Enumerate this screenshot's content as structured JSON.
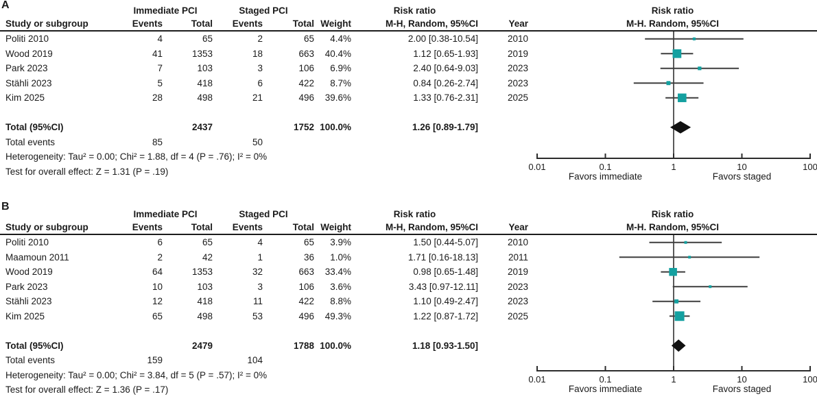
{
  "headers": {
    "study": "Study or subgroup",
    "immediate_group": "Immediate PCI",
    "staged_group": "Staged PCI",
    "events": "Events",
    "total": "Total",
    "weight": "Weight",
    "mh_column": "M-H, Random, 95%CI",
    "year": "Year",
    "risk_ratio": "Risk ratio",
    "mh_plot": "M-H. Random, 95%CI"
  },
  "axis": {
    "tick_labels": [
      "0.01",
      "0.1",
      "1",
      "10",
      "100"
    ],
    "tick_values": [
      0.01,
      0.1,
      1,
      10,
      100
    ],
    "favors_left": "Favors immediate",
    "favors_right": "Favors staged"
  },
  "colors": {
    "marker": "#14a0a0",
    "diamond": "#111111",
    "ci_line": "#3d3d3d",
    "axis": "#2b2b2b",
    "no_effect_line": "#595959"
  },
  "chart_data": [
    {
      "type": "forest",
      "panel": "A",
      "title": "Risk ratio",
      "subtitle": "M-H. Random, 95%CI",
      "x_scale": "log",
      "x_range": [
        0.01,
        100
      ],
      "studies": [
        {
          "study": "Politi 2010",
          "events_immediate": "4",
          "total_immediate": "65",
          "events_staged": "2",
          "total_staged": "65",
          "weight": "4.4%",
          "weight_pct": 4.4,
          "rr_text": "2.00 [0.38-10.54]",
          "year": "2010",
          "rr": 2.0,
          "ci_low": 0.38,
          "ci_high": 10.54
        },
        {
          "study": "Wood 2019",
          "events_immediate": "41",
          "total_immediate": "1353",
          "events_staged": "18",
          "total_staged": "663",
          "weight": "40.4%",
          "weight_pct": 40.4,
          "rr_text": "1.12 [0.65-1.93]",
          "year": "2019",
          "rr": 1.12,
          "ci_low": 0.65,
          "ci_high": 1.93
        },
        {
          "study": "Park 2023",
          "events_immediate": "7",
          "total_immediate": "103",
          "events_staged": "3",
          "total_staged": "106",
          "weight": "6.9%",
          "weight_pct": 6.9,
          "rr_text": "2.40 [0.64-9.03]",
          "year": "2023",
          "rr": 2.4,
          "ci_low": 0.64,
          "ci_high": 9.03
        },
        {
          "study": "Stähli 2023",
          "events_immediate": "5",
          "total_immediate": "418",
          "events_staged": "6",
          "total_staged": "422",
          "weight": "8.7%",
          "weight_pct": 8.7,
          "rr_text": "0.84 [0.26-2.74]",
          "year": "2023",
          "rr": 0.84,
          "ci_low": 0.26,
          "ci_high": 2.74
        },
        {
          "study": "Kim 2025",
          "events_immediate": "28",
          "total_immediate": "498",
          "events_staged": "21",
          "total_staged": "496",
          "weight": "39.6%",
          "weight_pct": 39.6,
          "rr_text": "1.33 [0.76-2.31]",
          "year": "2025",
          "rr": 1.33,
          "ci_low": 0.76,
          "ci_high": 2.31
        }
      ],
      "total": {
        "label": "Total (95%CI)",
        "total_immediate": "2437",
        "total_staged": "1752",
        "weight": "100.0%",
        "rr_text": "1.26 [0.89-1.79]",
        "rr": 1.26,
        "ci_low": 0.89,
        "ci_high": 1.79
      },
      "total_events": {
        "label": "Total events",
        "events_immediate": "85",
        "events_staged": "50"
      },
      "heterogeneity": "Heterogeneity: Tau² = 0.00; Chi² = 1.88, df = 4 (P = .76); I² = 0%",
      "overall_effect": "Test for overall effect: Z = 1.31 (P = .19)"
    },
    {
      "type": "forest",
      "panel": "B",
      "title": "Risk ratio",
      "subtitle": "M-H. Random, 95%CI",
      "x_scale": "log",
      "x_range": [
        0.01,
        100
      ],
      "studies": [
        {
          "study": "Politi 2010",
          "events_immediate": "6",
          "total_immediate": "65",
          "events_staged": "4",
          "total_staged": "65",
          "weight": "3.9%",
          "weight_pct": 3.9,
          "rr_text": "1.50 [0.44-5.07]",
          "year": "2010",
          "rr": 1.5,
          "ci_low": 0.44,
          "ci_high": 5.07
        },
        {
          "study": "Maamoun 2011",
          "events_immediate": "2",
          "total_immediate": "42",
          "events_staged": "1",
          "total_staged": "36",
          "weight": "1.0%",
          "weight_pct": 1.0,
          "rr_text": "1.71 [0.16-18.13]",
          "year": "2011",
          "rr": 1.71,
          "ci_low": 0.16,
          "ci_high": 18.13
        },
        {
          "study": "Wood 2019",
          "events_immediate": "64",
          "total_immediate": "1353",
          "events_staged": "32",
          "total_staged": "663",
          "weight": "33.4%",
          "weight_pct": 33.4,
          "rr_text": "0.98 [0.65-1.48]",
          "year": "2019",
          "rr": 0.98,
          "ci_low": 0.65,
          "ci_high": 1.48
        },
        {
          "study": "Park 2023",
          "events_immediate": "10",
          "total_immediate": "103",
          "events_staged": "3",
          "total_staged": "106",
          "weight": "3.6%",
          "weight_pct": 3.6,
          "rr_text": "3.43 [0.97-12.11]",
          "year": "2023",
          "rr": 3.43,
          "ci_low": 0.97,
          "ci_high": 12.11
        },
        {
          "study": "Stähli 2023",
          "events_immediate": "12",
          "total_immediate": "418",
          "events_staged": "11",
          "total_staged": "422",
          "weight": "8.8%",
          "weight_pct": 8.8,
          "rr_text": "1.10 [0.49-2.47]",
          "year": "2023",
          "rr": 1.1,
          "ci_low": 0.49,
          "ci_high": 2.47
        },
        {
          "study": "Kim 2025",
          "events_immediate": "65",
          "total_immediate": "498",
          "events_staged": "53",
          "total_staged": "496",
          "weight": "49.3%",
          "weight_pct": 49.3,
          "rr_text": "1.22 [0.87-1.72]",
          "year": "2025",
          "rr": 1.22,
          "ci_low": 0.87,
          "ci_high": 1.72
        }
      ],
      "total": {
        "label": "Total (95%CI)",
        "total_immediate": "2479",
        "total_staged": "1788",
        "weight": "100.0%",
        "rr_text": "1.18 [0.93-1.50]",
        "rr": 1.18,
        "ci_low": 0.93,
        "ci_high": 1.5
      },
      "total_events": {
        "label": "Total events",
        "events_immediate": "159",
        "events_staged": "104"
      },
      "heterogeneity": "Heterogeneity: Tau² = 0.00; Chi² = 3.84, df = 5 (P = .57); I² = 0%",
      "overall_effect": "Test for overall effect: Z = 1.36 (P = .17)"
    }
  ]
}
